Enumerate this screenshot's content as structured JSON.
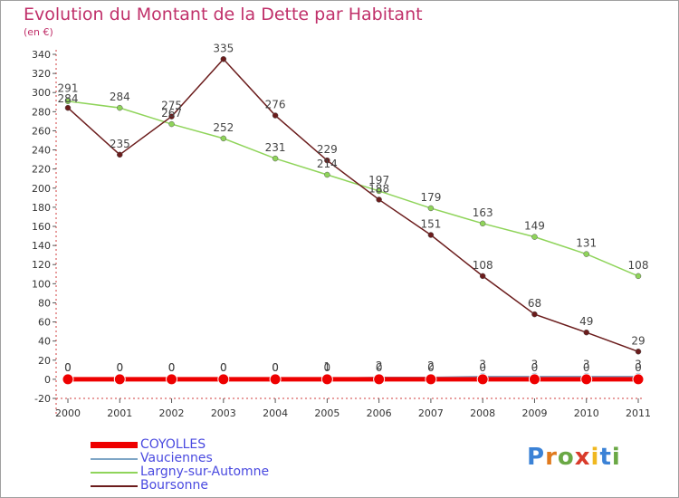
{
  "chart_title": "Evolution du Montant de la Dette par Habitant",
  "unit_label": "(en €)",
  "logo": {
    "letters": [
      "P",
      "r",
      "o",
      "x",
      "i",
      "t",
      "i"
    ],
    "colors": [
      "#3b82d6",
      "#e07a1e",
      "#6aa845",
      "#d93b2b",
      "#f0b820",
      "#3b82d6",
      "#6aa845"
    ]
  },
  "chart_data": {
    "type": "line",
    "title": "Evolution du Montant de la Dette par Habitant",
    "subtitle": "(en €)",
    "x": [
      "2000",
      "2001",
      "2002",
      "2003",
      "2004",
      "2005",
      "2006",
      "2007",
      "2008",
      "2009",
      "2010",
      "2011"
    ],
    "ylim": [
      -20,
      340
    ],
    "yticks": [
      -20,
      0,
      20,
      40,
      60,
      80,
      100,
      120,
      140,
      160,
      180,
      200,
      220,
      240,
      260,
      280,
      300,
      320,
      340
    ],
    "grid": false,
    "legend_position": "bottom-left",
    "series": [
      {
        "name": "COYOLLES",
        "color": "#ee0000",
        "values": [
          0,
          0,
          0,
          0,
          0,
          0,
          0,
          0,
          0,
          0,
          0,
          0
        ],
        "labels": [
          "0",
          "0",
          "0",
          "0",
          "0",
          "0",
          "0",
          "0",
          "0",
          "0",
          "0",
          "0"
        ]
      },
      {
        "name": "Vauciennes",
        "color": "#7fa6c6",
        "values": [
          0,
          0,
          0,
          0,
          0,
          1,
          2,
          2,
          3,
          3,
          3,
          3
        ],
        "labels": [
          "0",
          "0",
          "0",
          "0",
          "0",
          "1",
          "2",
          "2",
          "3",
          "3",
          "3",
          "3"
        ]
      },
      {
        "name": "Largny-sur-Automne",
        "color": "#8fd45a",
        "values": [
          291,
          284,
          267,
          252,
          231,
          214,
          197,
          179,
          163,
          149,
          131,
          108
        ],
        "labels": [
          "291",
          "284",
          "267",
          "252",
          "231",
          "214",
          "197",
          "179",
          "163",
          "149",
          "131",
          "108"
        ]
      },
      {
        "name": "Boursonne",
        "color": "#6b1c1c",
        "values": [
          284,
          235,
          275,
          335,
          276,
          229,
          188,
          151,
          108,
          68,
          49,
          29
        ],
        "labels": [
          "284",
          "235",
          "275",
          "335",
          "276",
          "229",
          "188",
          "151",
          "108",
          "68",
          "49",
          "29"
        ]
      }
    ]
  }
}
